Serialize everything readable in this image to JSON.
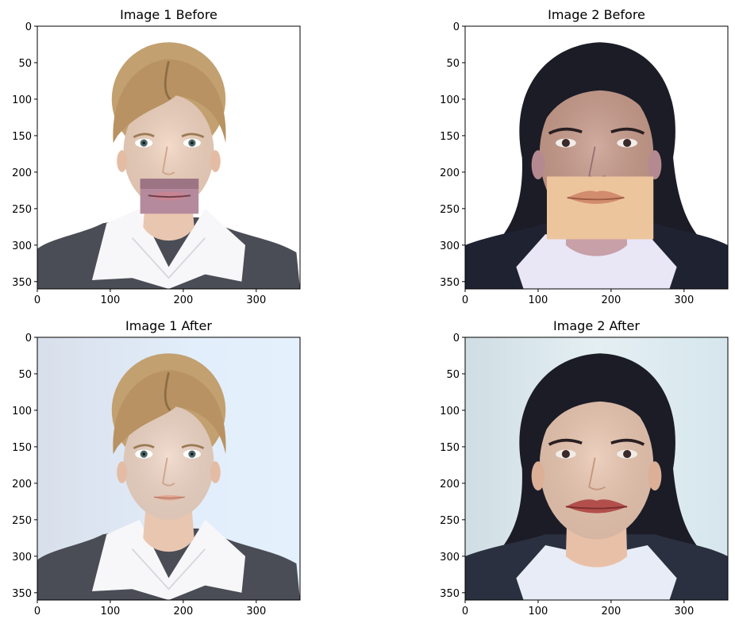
{
  "figure": {
    "panels": [
      {
        "title": "Image 1 Before",
        "subject": "blonde",
        "stage": "before"
      },
      {
        "title": "Image 2 Before",
        "subject": "dark",
        "stage": "before"
      },
      {
        "title": "Image 1 After",
        "subject": "blonde",
        "stage": "after"
      },
      {
        "title": "Image 2 After",
        "subject": "dark",
        "stage": "after"
      }
    ]
  },
  "chart_data": [
    {
      "type": "image",
      "title": "Image 1 Before",
      "xlim": [
        0,
        360
      ],
      "ylim": [
        360,
        0
      ],
      "xticks": [
        0,
        100,
        200,
        300
      ],
      "yticks": [
        0,
        50,
        100,
        150,
        200,
        250,
        300,
        350
      ],
      "grid": false
    },
    {
      "type": "image",
      "title": "Image 2 Before",
      "xlim": [
        0,
        360
      ],
      "ylim": [
        360,
        0
      ],
      "xticks": [
        0,
        100,
        200,
        300
      ],
      "yticks": [
        0,
        50,
        100,
        150,
        200,
        250,
        300,
        350
      ],
      "grid": false
    },
    {
      "type": "image",
      "title": "Image 1 After",
      "xlim": [
        0,
        360
      ],
      "ylim": [
        360,
        0
      ],
      "xticks": [
        0,
        100,
        200,
        300
      ],
      "yticks": [
        0,
        50,
        100,
        150,
        200,
        250,
        300,
        350
      ],
      "grid": false
    },
    {
      "type": "image",
      "title": "Image 2 After",
      "xlim": [
        0,
        360
      ],
      "ylim": [
        360,
        0
      ],
      "xticks": [
        0,
        100,
        200,
        300
      ],
      "yticks": [
        0,
        50,
        100,
        150,
        200,
        250,
        300,
        350
      ],
      "grid": false
    }
  ],
  "colors": {
    "suit_gray": "#4a4d55",
    "suit_dark": "#1f2231",
    "shirt_white": "#f7f7f9",
    "shirt_lavender": "#e9e6f6",
    "skin_light": "#f1d3bf",
    "skin_tan": "#c79a8a",
    "hair_blonde": "#c2a070",
    "hair_dark": "#1b1c26",
    "bg_after_1": "#dfe9f5",
    "bg_after_2": "#dde9ee",
    "mouth_patch_1": "#b58a9c",
    "mouth_patch_2": "#ecc59d"
  }
}
